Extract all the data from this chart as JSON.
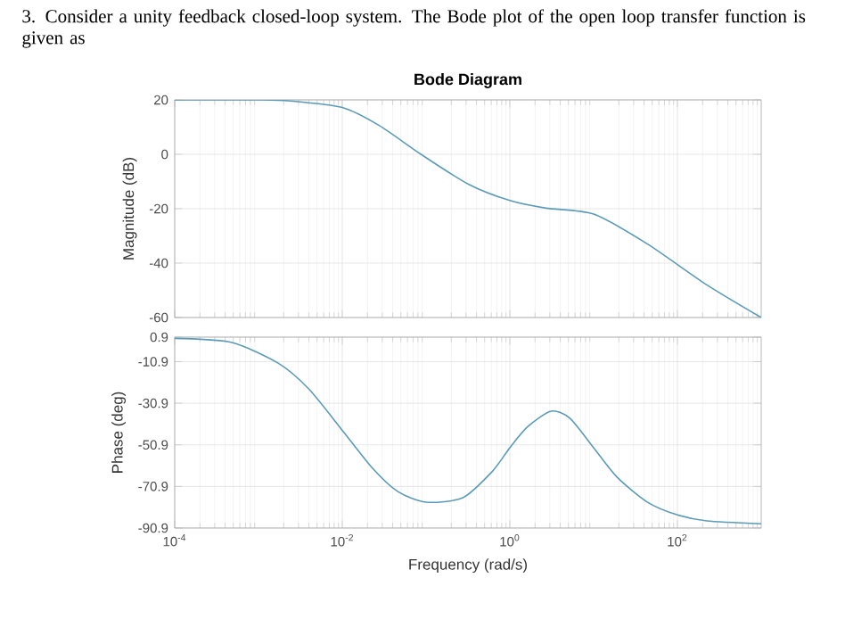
{
  "chart_data": [
    {
      "type": "line",
      "title": "Bode Diagram",
      "ylabel": "Magnitude (dB)",
      "annotations": [
        "3. Consider a unity feedback closed-loop system. The Bode plot of the open loop transfer function is given as"
      ],
      "log": "x",
      "grid": true,
      "tick_labels": "y",
      "xlim": [
        0.0001,
        1000
      ],
      "xticks": [
        {
          "value": 0.0001,
          "label": null
        },
        {
          "value": 0.01,
          "label": null
        },
        {
          "value": 1,
          "label": null
        },
        {
          "value": 100,
          "label": null
        }
      ],
      "ylim": [
        -60,
        20
      ],
      "yticks": [
        -60,
        -40,
        -20,
        0,
        20
      ],
      "series": [
        {
          "color": "#5b9bb8",
          "x": [
            0.0001,
            0.001,
            0.0024,
            0.01,
            0.0275,
            0.087,
            0.32,
            1,
            2.7,
            10,
            44,
            224,
            1000
          ],
          "values": [
            20,
            20,
            19.6,
            17.2,
            10.6,
            0,
            -11,
            -17,
            -19.8,
            -22,
            -33,
            -48,
            -60
          ]
        }
      ]
    },
    {
      "type": "line",
      "xlabel": "Frequency  (rad/s)",
      "ylabel": "Phase (deg)",
      "log": "x",
      "grid": true,
      "xlim": [
        0.0001,
        1000
      ],
      "xticks": [
        {
          "value": 0.0001,
          "label": "10$^{-4}$"
        },
        {
          "value": 0.01,
          "label": "10$^{-2}$"
        },
        {
          "value": 1,
          "label": "10$^{0}$"
        },
        {
          "value": 100,
          "label": "10$^{2}$"
        }
      ],
      "ylim": [
        -90.9,
        0.9
      ],
      "yticks": [
        -90.9,
        -70.9,
        -50.9,
        -30.9,
        -10.9,
        0.9
      ],
      "series": [
        {
          "color": "#5b9bb8",
          "x": [
            0.0001,
            0.00047,
            0.0017,
            0.004,
            0.01,
            0.023,
            0.046,
            0.1,
            0.275,
            0.62,
            1,
            1.62,
            3.1,
            5.2,
            10,
            19,
            44,
            100,
            224,
            1000
          ],
          "values": [
            0.3,
            -1.6,
            -11.5,
            -24.1,
            -43.9,
            -62.2,
            -73.4,
            -78.5,
            -76.3,
            -63.6,
            -52.3,
            -42.3,
            -34.7,
            -38.1,
            -52.3,
            -66.4,
            -78.5,
            -84.6,
            -87.5,
            -88.9
          ]
        }
      ]
    }
  ]
}
